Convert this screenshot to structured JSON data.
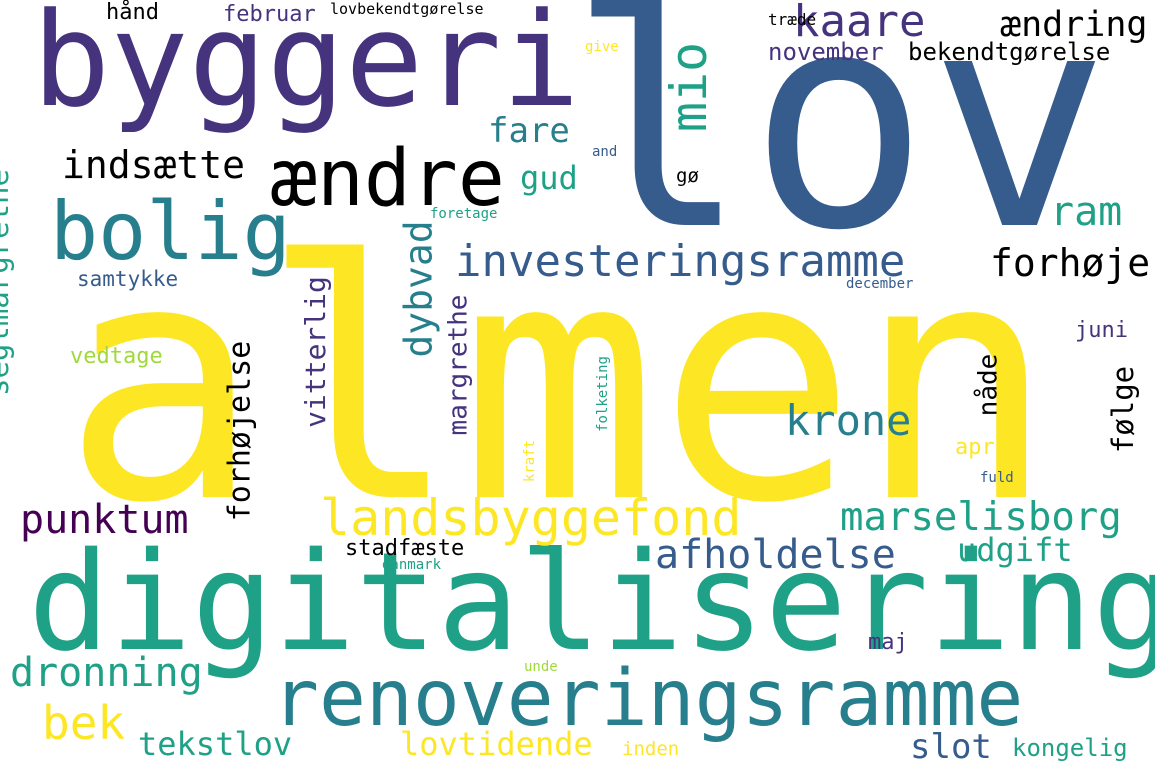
{
  "palette": {
    "dark_purple": "#440154",
    "indigo": "#46337e",
    "slate_blue": "#365c8d",
    "steel_teal": "#277f8e",
    "teal": "#1fa187",
    "green": "#4ac16d",
    "light_green": "#9fda3a",
    "yellow": "#fde725"
  },
  "words": [
    {
      "id": "almen",
      "text": "almen",
      "color": "yellow"
    },
    {
      "id": "lov",
      "text": "lov",
      "color": "slate_blue"
    },
    {
      "id": "digitalisering",
      "text": "digitalisering",
      "color": "teal"
    },
    {
      "id": "byggeri",
      "text": "byggeri",
      "color": "indigo"
    },
    {
      "id": "renoveringsramme",
      "text": "renoveringsramme",
      "color": "steel_teal"
    },
    {
      "id": "bolig",
      "text": "bolig",
      "color": "steel_teal"
    },
    {
      "id": "aendre",
      "text": "ændre",
      "color": "dark_purple"
    },
    {
      "id": "investeringsramme",
      "text": "investeringsramme",
      "color": "slate_blue"
    },
    {
      "id": "landsbyggefond",
      "text": "landsbyggefond",
      "color": "yellow"
    },
    {
      "id": "kaare",
      "text": "kaare",
      "color": "indigo"
    },
    {
      "id": "mio",
      "text": "mio",
      "color": "teal"
    },
    {
      "id": "aendring",
      "text": "ændring",
      "color": "teal"
    },
    {
      "id": "marselisborg",
      "text": "marselisborg",
      "color": "teal"
    },
    {
      "id": "afholdelse",
      "text": "afholdelse",
      "color": "slate_blue"
    },
    {
      "id": "krone",
      "text": "krone",
      "color": "steel_teal"
    },
    {
      "id": "punktum",
      "text": "punktum",
      "color": "dark_purple"
    },
    {
      "id": "indsaette",
      "text": "indsætte",
      "color": "steel_teal"
    },
    {
      "id": "fare",
      "text": "fare",
      "color": "steel_teal"
    },
    {
      "id": "gud",
      "text": "gud",
      "color": "teal"
    },
    {
      "id": "ram",
      "text": "ram",
      "color": "teal"
    },
    {
      "id": "forhoeje",
      "text": "forhøje",
      "color": "light_green"
    },
    {
      "id": "bek",
      "text": "bek",
      "color": "yellow"
    },
    {
      "id": "tekstlov",
      "text": "tekstlov",
      "color": "teal"
    },
    {
      "id": "lovtidende",
      "text": "lovtidende",
      "color": "yellow"
    },
    {
      "id": "slot",
      "text": "slot",
      "color": "slate_blue"
    },
    {
      "id": "dronning",
      "text": "dronning",
      "color": "teal"
    },
    {
      "id": "udgift",
      "text": "udgift",
      "color": "teal"
    },
    {
      "id": "stadfaeste",
      "text": "stadfæste",
      "color": "dark_purple"
    },
    {
      "id": "kongelig",
      "text": "kongelig",
      "color": "teal"
    },
    {
      "id": "november",
      "text": "november",
      "color": "indigo"
    },
    {
      "id": "bekendtgoerelse",
      "text": "bekendtgørelse",
      "color": "indigo"
    },
    {
      "id": "februar",
      "text": "februar",
      "color": "indigo"
    },
    {
      "id": "haand",
      "text": "hånd",
      "color": "slate_blue"
    },
    {
      "id": "lovbekendtgoerelse",
      "text": "lovbekendtgørelse",
      "color": "teal"
    },
    {
      "id": "traede",
      "text": "træde",
      "color": "slate_blue"
    },
    {
      "id": "give",
      "text": "give",
      "color": "yellow"
    },
    {
      "id": "samtykke",
      "text": "samtykke",
      "color": "slate_blue"
    },
    {
      "id": "vedtage",
      "text": "vedtage",
      "color": "light_green"
    },
    {
      "id": "maj",
      "text": "maj",
      "color": "indigo"
    },
    {
      "id": "inden",
      "text": "inden",
      "color": "yellow"
    },
    {
      "id": "april",
      "text": "april",
      "color": "yellow"
    },
    {
      "id": "fuld",
      "text": "fuld",
      "color": "slate_blue"
    },
    {
      "id": "juni",
      "text": "juni",
      "color": "indigo"
    },
    {
      "id": "december",
      "text": "december",
      "color": "slate_blue"
    },
    {
      "id": "and",
      "text": "and",
      "color": "slate_blue"
    },
    {
      "id": "goe",
      "text": "gø",
      "color": "slate_blue"
    },
    {
      "id": "foretage",
      "text": "foretage",
      "color": "teal"
    },
    {
      "id": "danmark",
      "text": "danmark",
      "color": "teal"
    },
    {
      "id": "unde",
      "text": "unde",
      "color": "light_green"
    },
    {
      "id": "seglmargrethe",
      "text": "seglmargrethe",
      "color": "teal"
    },
    {
      "id": "forhoejelse",
      "text": "forhøjelse",
      "color": "teal"
    },
    {
      "id": "vitterlig",
      "text": "vitterlig",
      "color": "indigo"
    },
    {
      "id": "dybvad",
      "text": "dybvad",
      "color": "steel_teal"
    },
    {
      "id": "margrethe",
      "text": "margrethe",
      "color": "indigo"
    },
    {
      "id": "naade",
      "text": "nåde",
      "color": "slate_blue"
    },
    {
      "id": "foelge",
      "text": "følge",
      "color": "indigo"
    },
    {
      "id": "folketing",
      "text": "folketing",
      "color": "teal"
    },
    {
      "id": "kraft",
      "text": "kraft",
      "color": "yellow"
    }
  ]
}
